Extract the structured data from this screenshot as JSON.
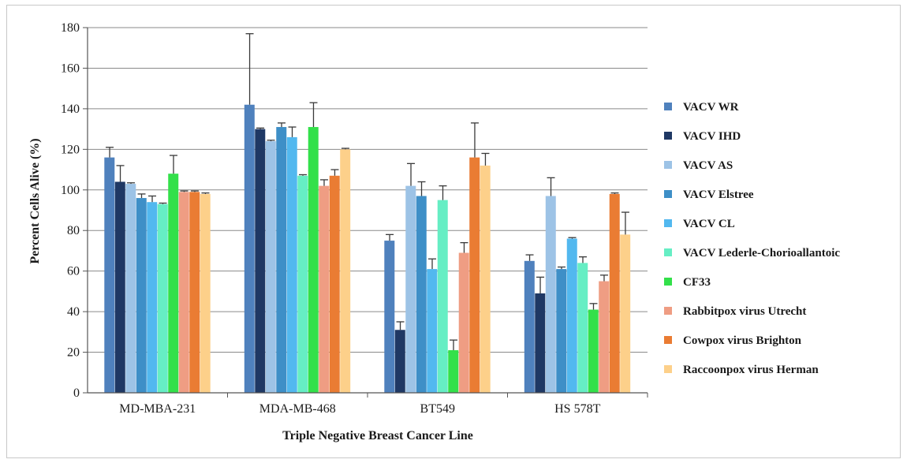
{
  "chart_data": {
    "type": "bar",
    "title": "",
    "xlabel": "Triple Negative Breast Cancer Line",
    "ylabel": "Percent Cells Alive (%)",
    "ylim": [
      0,
      180
    ],
    "yticks": [
      0,
      20,
      40,
      60,
      80,
      100,
      120,
      140,
      160,
      180
    ],
    "grid": true,
    "legend_position": "right",
    "categories": [
      "MD-MBA-231",
      "MDA-MB-468",
      "BT549",
      "HS 578T"
    ],
    "series": [
      {
        "name": "VACV WR",
        "color": "#4f81bd",
        "values": [
          116,
          142,
          75,
          65
        ],
        "errors": [
          5,
          35,
          3,
          3
        ]
      },
      {
        "name": "VACV IHD",
        "color": "#1f3864",
        "values": [
          104,
          130,
          31,
          49
        ],
        "errors": [
          8,
          0.5,
          4,
          8
        ]
      },
      {
        "name": "VACV AS",
        "color": "#9dc3e6",
        "values": [
          103,
          124,
          102,
          97
        ],
        "errors": [
          0.5,
          0.5,
          11,
          9
        ]
      },
      {
        "name": "VACV Elstree",
        "color": "#3e8fc7",
        "values": [
          96,
          131,
          97,
          61
        ],
        "errors": [
          2,
          2,
          7,
          1
        ]
      },
      {
        "name": "VACV CL",
        "color": "#52b8ef",
        "values": [
          94,
          126,
          61,
          76
        ],
        "errors": [
          3,
          5,
          5,
          0.5
        ]
      },
      {
        "name": "VACV Lederle-Chorioallantoic",
        "color": "#66eec4",
        "values": [
          93,
          107,
          95,
          64
        ],
        "errors": [
          0.5,
          0.5,
          7,
          3
        ]
      },
      {
        "name": "CF33",
        "color": "#33e04a",
        "values": [
          108,
          131,
          21,
          41
        ],
        "errors": [
          9,
          12,
          5,
          3
        ]
      },
      {
        "name": "Rabbitpox virus Utrecht",
        "color": "#ef9d83",
        "values": [
          99,
          102,
          69,
          55
        ],
        "errors": [
          0.5,
          3,
          5,
          3
        ]
      },
      {
        "name": "Cowpox virus Brighton",
        "color": "#ea7c33",
        "values": [
          99,
          107,
          116,
          98
        ],
        "errors": [
          0.5,
          3,
          17,
          0.5
        ]
      },
      {
        "name": "Raccoonpox virus Herman",
        "color": "#fdd08a",
        "values": [
          98,
          120,
          112,
          78
        ],
        "errors": [
          0.5,
          0.5,
          6,
          11
        ]
      }
    ]
  }
}
